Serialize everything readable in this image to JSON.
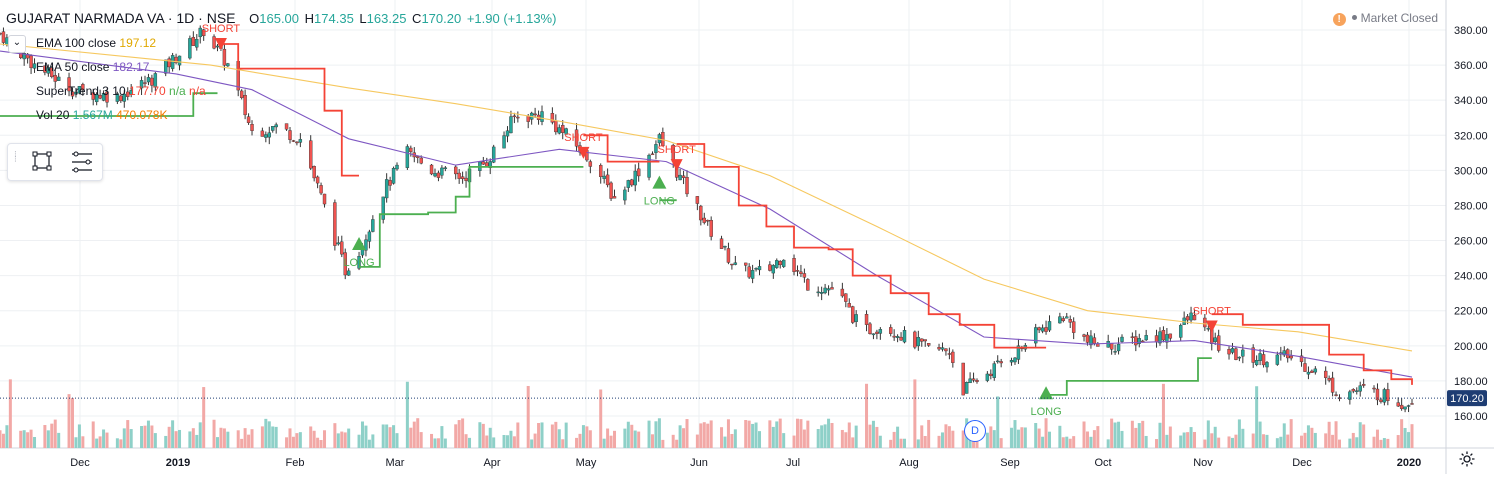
{
  "header": {
    "title": "GUJARAT NARMADA VA · 1D · NSE",
    "open_label": "O",
    "open": "165.00",
    "high_label": "H",
    "high": "174.35",
    "low_label": "L",
    "low": "163.25",
    "close_label": "C",
    "close": "170.20",
    "change": "+1.90 (+1.13%)",
    "market_status": "Market Closed",
    "warn_glyph": "!"
  },
  "legend": {
    "toggle_glyph": "⌄",
    "ema100_label": "EMA 100 close",
    "ema100_value": "197.12",
    "ema50_label": "EMA 50 close",
    "ema50_value": "182.17",
    "st_label": "SuperTrend 3 10",
    "st_value": "177.70",
    "st_value2": "n/a",
    "st_value3": "n/a",
    "vol_label": "Vol 20",
    "vol_value": "1.567M",
    "vol_ma": "470.078K"
  },
  "price_badge": "170.20",
  "event_badge": "D",
  "icons": [
    "warning-icon",
    "chevron-down-icon",
    "rectangle-tool-icon",
    "lines-tool-icon",
    "grip-icon",
    "gear-icon"
  ],
  "colors": {
    "up": "#26a69a",
    "down": "#ef5350",
    "ema100": "#f6c85f",
    "ema50": "#7e57c2",
    "st_up": "#4caf50",
    "st_down": "#f44336",
    "vol_up": "#8ed0c8",
    "vol_down": "#f2a8a6",
    "grid": "#eef0f3",
    "last_price": "#1e3d73"
  },
  "chart_data": {
    "type": "candlestick",
    "y_axis": {
      "ticks": [
        160,
        180,
        200,
        220,
        240,
        260,
        280,
        300,
        320,
        340,
        360,
        380
      ],
      "range": [
        148,
        390
      ],
      "position": "right"
    },
    "x_axis_labels": [
      "Dec",
      "2019",
      "Feb",
      "Mar",
      "Apr",
      "May",
      "Jun",
      "Jul",
      "Aug",
      "Sep",
      "Oct",
      "Nov",
      "Dec",
      "2020"
    ],
    "signals": [
      {
        "text": "SHORT",
        "type": "short",
        "x": "2019-01-23",
        "price": 372
      },
      {
        "text": "LONG",
        "type": "long",
        "x": "2019-03-04",
        "price": 258
      },
      {
        "text": "SHORT",
        "type": "short",
        "x": "2019-05-08",
        "price": 310
      },
      {
        "text": "LONG",
        "type": "long",
        "x": "2019-05-30",
        "price": 293
      },
      {
        "text": "SHORT",
        "type": "short",
        "x": "2019-06-04",
        "price": 303
      },
      {
        "text": "LONG",
        "type": "long",
        "x": "2019-09-19",
        "price": 173
      },
      {
        "text": "SHORT",
        "type": "short",
        "x": "2019-11-06",
        "price": 211
      }
    ],
    "close_path": [
      [
        "2018-11-20",
        378
      ],
      [
        "2018-11-30",
        360
      ],
      [
        "2018-12-12",
        345
      ],
      [
        "2018-12-24",
        342
      ],
      [
        "2019-01-03",
        352
      ],
      [
        "2019-01-14",
        372
      ],
      [
        "2019-01-18",
        380
      ],
      [
        "2019-01-25",
        360
      ],
      [
        "2019-02-01",
        322
      ],
      [
        "2019-02-08",
        325
      ],
      [
        "2019-02-15",
        318
      ],
      [
        "2019-02-21",
        285
      ],
      [
        "2019-02-28",
        243
      ],
      [
        "2019-03-05",
        258
      ],
      [
        "2019-03-10",
        285
      ],
      [
        "2019-03-18",
        310
      ],
      [
        "2019-03-25",
        300
      ],
      [
        "2019-04-03",
        296
      ],
      [
        "2019-04-10",
        305
      ],
      [
        "2019-04-18",
        330
      ],
      [
        "2019-04-26",
        332
      ],
      [
        "2019-05-03",
        320
      ],
      [
        "2019-05-10",
        306
      ],
      [
        "2019-05-17",
        284
      ],
      [
        "2019-05-24",
        300
      ],
      [
        "2019-05-30",
        318
      ],
      [
        "2019-06-06",
        292
      ],
      [
        "2019-06-13",
        268
      ],
      [
        "2019-06-22",
        242
      ],
      [
        "2019-06-30",
        242
      ],
      [
        "2019-07-05",
        252
      ],
      [
        "2019-07-12",
        235
      ],
      [
        "2019-07-20",
        232
      ],
      [
        "2019-07-28",
        208
      ],
      [
        "2019-08-03",
        212
      ],
      [
        "2019-08-10",
        204
      ],
      [
        "2019-08-16",
        198
      ],
      [
        "2019-08-22",
        197
      ],
      [
        "2019-08-26",
        175
      ],
      [
        "2019-09-03",
        186
      ],
      [
        "2019-09-10",
        196
      ],
      [
        "2019-09-18",
        210
      ],
      [
        "2019-09-24",
        217
      ],
      [
        "2019-10-01",
        202
      ],
      [
        "2019-10-08",
        200
      ],
      [
        "2019-10-16",
        204
      ],
      [
        "2019-10-25",
        207
      ],
      [
        "2019-11-01",
        218
      ],
      [
        "2019-11-06",
        203
      ],
      [
        "2019-11-12",
        195
      ],
      [
        "2019-11-20",
        193
      ],
      [
        "2019-11-28",
        194
      ],
      [
        "2019-12-06",
        186
      ],
      [
        "2019-12-13",
        173
      ],
      [
        "2019-12-20",
        175
      ],
      [
        "2019-12-27",
        171
      ],
      [
        "2020-01-01",
        167
      ],
      [
        "2020-01-03",
        170.2
      ]
    ],
    "ema100": [
      [
        "2018-11-20",
        372
      ],
      [
        "2019-01-20",
        360
      ],
      [
        "2019-03-01",
        347
      ],
      [
        "2019-04-01",
        338
      ],
      [
        "2019-05-01",
        328
      ],
      [
        "2019-06-01",
        317
      ],
      [
        "2019-07-01",
        297
      ],
      [
        "2019-08-01",
        268
      ],
      [
        "2019-09-01",
        238
      ],
      [
        "2019-10-01",
        220
      ],
      [
        "2019-11-01",
        213
      ],
      [
        "2019-12-01",
        208
      ],
      [
        "2020-01-03",
        197.12
      ]
    ],
    "ema50": [
      [
        "2018-11-20",
        368
      ],
      [
        "2019-01-10",
        355
      ],
      [
        "2019-02-01",
        346
      ],
      [
        "2019-03-01",
        318
      ],
      [
        "2019-04-01",
        303
      ],
      [
        "2019-05-01",
        312
      ],
      [
        "2019-06-01",
        305
      ],
      [
        "2019-07-01",
        278
      ],
      [
        "2019-08-01",
        240
      ],
      [
        "2019-09-01",
        205
      ],
      [
        "2019-10-01",
        201
      ],
      [
        "2019-11-01",
        203
      ],
      [
        "2019-12-01",
        194
      ],
      [
        "2020-01-03",
        182.17
      ]
    ],
    "supertrend": [
      {
        "dir": "up",
        "points": [
          [
            "2018-11-20",
            331
          ],
          [
            "2019-01-10",
            331
          ],
          [
            "2019-01-15",
            344
          ],
          [
            "2019-01-22",
            344
          ]
        ]
      },
      {
        "dir": "down",
        "points": [
          [
            "2019-01-23",
            372
          ],
          [
            "2019-01-28",
            358
          ],
          [
            "2019-02-18",
            358
          ],
          [
            "2019-02-22",
            334
          ],
          [
            "2019-02-27",
            297
          ],
          [
            "2019-03-04",
            297
          ]
        ]
      },
      {
        "dir": "up",
        "points": [
          [
            "2019-03-04",
            245
          ],
          [
            "2019-03-10",
            275
          ],
          [
            "2019-03-24",
            276
          ],
          [
            "2019-04-01",
            285
          ],
          [
            "2019-04-05",
            302
          ],
          [
            "2019-05-08",
            302
          ]
        ]
      },
      {
        "dir": "down",
        "points": [
          [
            "2019-05-08",
            320
          ],
          [
            "2019-05-15",
            305
          ],
          [
            "2019-05-30",
            305
          ]
        ]
      },
      {
        "dir": "up",
        "points": [
          [
            "2019-05-30",
            283
          ],
          [
            "2019-06-04",
            283
          ]
        ]
      },
      {
        "dir": "down",
        "points": [
          [
            "2019-06-04",
            315
          ],
          [
            "2019-06-12",
            302
          ],
          [
            "2019-06-22",
            280
          ],
          [
            "2019-06-30",
            268
          ],
          [
            "2019-07-08",
            256
          ],
          [
            "2019-07-18",
            255
          ],
          [
            "2019-07-25",
            240
          ],
          [
            "2019-08-05",
            230
          ],
          [
            "2019-08-16",
            218
          ],
          [
            "2019-08-25",
            212
          ],
          [
            "2019-09-04",
            199
          ],
          [
            "2019-09-19",
            199
          ]
        ]
      },
      {
        "dir": "up",
        "points": [
          [
            "2019-09-19",
            172
          ],
          [
            "2019-09-25",
            180
          ],
          [
            "2019-10-18",
            180
          ],
          [
            "2019-10-28",
            180
          ],
          [
            "2019-11-02",
            193
          ],
          [
            "2019-11-06",
            193
          ]
        ]
      },
      {
        "dir": "down",
        "points": [
          [
            "2019-11-06",
            218
          ],
          [
            "2019-11-15",
            212
          ],
          [
            "2019-11-28",
            212
          ],
          [
            "2019-12-10",
            195
          ],
          [
            "2019-12-20",
            186
          ],
          [
            "2019-12-28",
            181
          ],
          [
            "2020-01-03",
            177.7
          ]
        ]
      }
    ],
    "volume_note": "Vol 20 1.567M, MA 470.078K"
  }
}
